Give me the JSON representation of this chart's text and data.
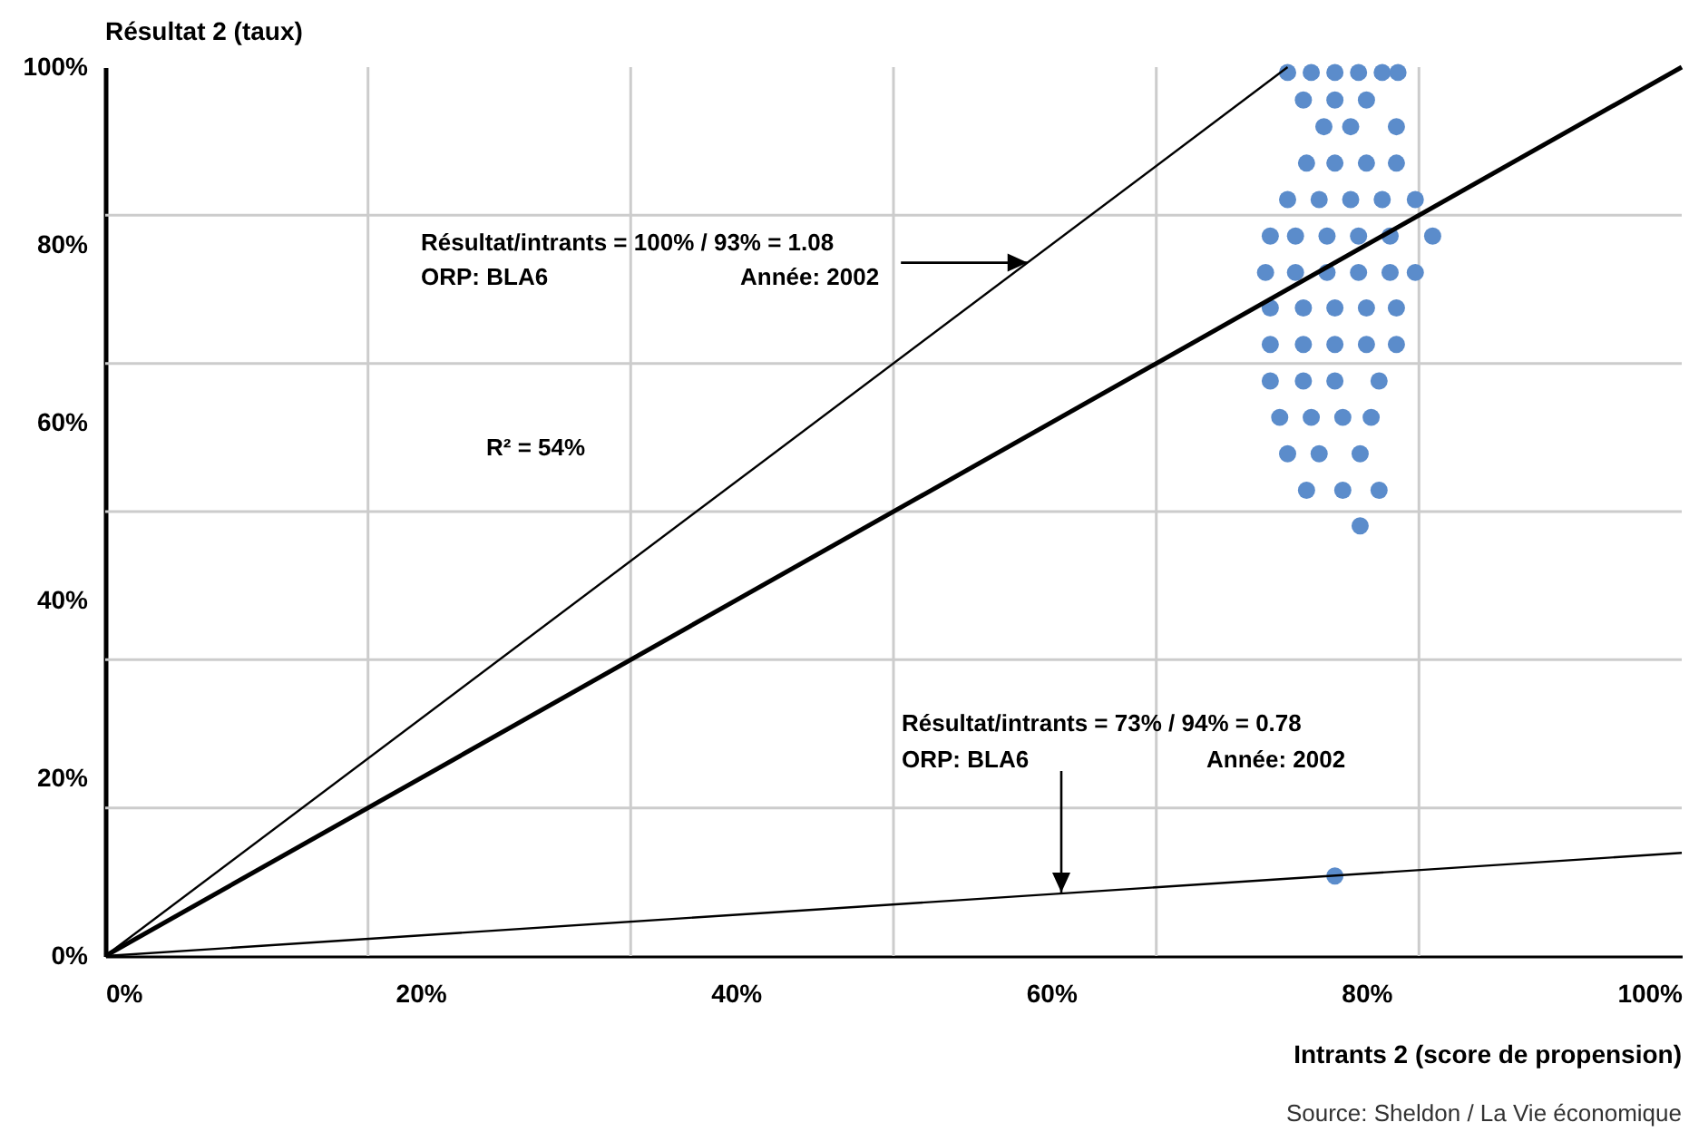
{
  "chart_data": {
    "type": "scatter",
    "ylabel": "Résultat 2 (taux)",
    "xlabel": "Intrants 2 (score de propension)",
    "xlim": [
      0,
      100
    ],
    "ylim": [
      0,
      100
    ],
    "xticks": [
      {
        "value": 0,
        "label": "0%"
      },
      {
        "value": 16.67,
        "label": null
      },
      {
        "value": 20,
        "label": "20%"
      },
      {
        "value": 33.33,
        "label": null
      },
      {
        "value": 40,
        "label": "40%"
      },
      {
        "value": 50,
        "label": null
      },
      {
        "value": 60,
        "label": "60%"
      },
      {
        "value": 66.67,
        "label": null
      },
      {
        "value": 80,
        "label": "80%"
      },
      {
        "value": 83.33,
        "label": null
      },
      {
        "value": 100,
        "label": "100%"
      }
    ],
    "yticks": [
      {
        "value": 0,
        "label": "0%"
      },
      {
        "value": 16.67,
        "label": null
      },
      {
        "value": 20,
        "label": "20%"
      },
      {
        "value": 33.33,
        "label": null
      },
      {
        "value": 40,
        "label": "40%"
      },
      {
        "value": 50,
        "label": null
      },
      {
        "value": 60,
        "label": "60%"
      },
      {
        "value": 66.67,
        "label": null
      },
      {
        "value": 80,
        "label": "80%"
      },
      {
        "value": 83.33,
        "label": null
      },
      {
        "value": 100,
        "label": "100%"
      }
    ],
    "grid": true,
    "series": [
      {
        "color": "#5b8ccb",
        "marker": "circle",
        "x": [
          75,
          76.5,
          78,
          79.5,
          81,
          82,
          76,
          78,
          80,
          77.3,
          79,
          81.9,
          76.2,
          78,
          80,
          81.9,
          75,
          77,
          79,
          81,
          83.1,
          73.9,
          75.5,
          77.5,
          79.5,
          81.5,
          84.2,
          73.6,
          75.5,
          77.5,
          79.5,
          81.5,
          83.1,
          73.9,
          76,
          78,
          80,
          81.9,
          73.9,
          76,
          78,
          80,
          81.9,
          73.9,
          76,
          78,
          80.8,
          74.5,
          76.5,
          78.5,
          80.3,
          75,
          77,
          79.6,
          76.2,
          78.5,
          80.8,
          79.6,
          78
        ],
        "values": [
          99.4,
          99.4,
          99.4,
          99.4,
          99.4,
          99.4,
          96.3,
          96.3,
          96.3,
          93.3,
          93.3,
          93.3,
          89.2,
          89.2,
          89.2,
          89.2,
          85.1,
          85.1,
          85.1,
          85.1,
          85.1,
          81,
          81,
          81,
          81,
          81,
          81,
          76.9,
          76.9,
          76.9,
          76.9,
          76.9,
          76.9,
          72.9,
          72.9,
          72.9,
          72.9,
          72.9,
          68.8,
          68.8,
          68.8,
          68.8,
          68.8,
          64.7,
          64.7,
          64.7,
          64.7,
          60.6,
          60.6,
          60.6,
          60.6,
          56.5,
          56.5,
          56.5,
          52.4,
          52.4,
          52.4,
          48.4,
          9
        ]
      },
      {
        "type": "line",
        "color": "#000000",
        "x": [
          0,
          75
        ],
        "values": [
          0,
          100
        ]
      },
      {
        "type": "line",
        "color": "#000000",
        "x": [
          0,
          100
        ],
        "values": [
          0,
          100
        ]
      },
      {
        "type": "line",
        "color": "#000000",
        "x": [
          0,
          100
        ],
        "values": [
          0,
          11.6
        ]
      }
    ],
    "annotations": [
      "Résultat/intrants = 100% / 93% = 1.08",
      "ORP: BLA6",
      {
        "text": "Année: 2002",
        "x": 58.5,
        "y": 78
      },
      "R² = 54%",
      "Résultat/intrants = 73% / 94% = 0.78",
      "ORP: BLA6",
      "Année: 2002",
      "Source: Sheldon / La Vie économique"
    ]
  }
}
